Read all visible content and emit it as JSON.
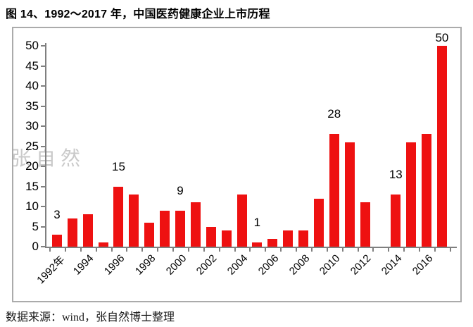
{
  "figure": {
    "title": "图 14、1992～2017 年，中国医药健康企业上市历程",
    "source_note": "数据来源：wind，张自然博士整理",
    "watermark": "张自然"
  },
  "colors": {
    "bar": "#ee1111",
    "axis": "#7f7f7f",
    "frame_border": "#ababab",
    "text": "#000000",
    "watermark": "#c9c9c9"
  },
  "chart_data": {
    "type": "bar",
    "title": "图 14、1992～2017 年，中国医药健康企业上市历程",
    "categories": [
      1992,
      1993,
      1994,
      1995,
      1996,
      1997,
      1998,
      1999,
      2000,
      2001,
      2002,
      2003,
      2004,
      2005,
      2006,
      2007,
      2008,
      2009,
      2010,
      2011,
      2012,
      2013,
      2014,
      2015,
      2016,
      2017
    ],
    "values": [
      3,
      7,
      8,
      1,
      15,
      13,
      6,
      9,
      9,
      11,
      5,
      4,
      13,
      1,
      2,
      4,
      4,
      12,
      28,
      26,
      11,
      0,
      13,
      26,
      28,
      50
    ],
    "labeled_points": {
      "1992": 3,
      "1996": 15,
      "2000": 9,
      "2005": 1,
      "2010": 28,
      "2014": 13,
      "2017": 50
    },
    "x_tick_labels": [
      "1992年",
      "1994",
      "1996",
      "1998",
      "2000",
      "2002",
      "2004",
      "2006",
      "2008",
      "2010",
      "2012",
      "2014",
      "2016"
    ],
    "y_ticks": [
      0,
      5,
      10,
      15,
      20,
      25,
      30,
      35,
      40,
      45,
      50
    ],
    "ylim": [
      0,
      50
    ],
    "xlabel": "",
    "ylabel": "",
    "grid": false,
    "legend": false
  }
}
